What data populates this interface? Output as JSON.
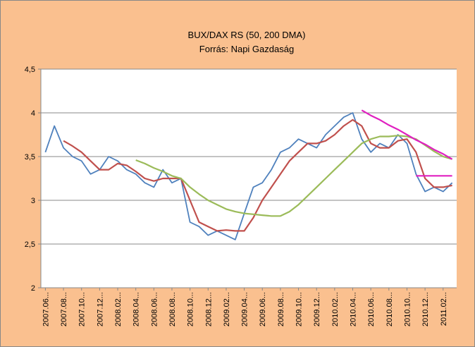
{
  "chart_data": {
    "type": "line",
    "title": "BUX/DAX RS (50, 200 DMA)",
    "subtitle": "Forrás: Napi Gazdaság",
    "categories": [
      "2007.06...",
      null,
      "2007.08...",
      null,
      "2007.10...",
      null,
      "2007.12...",
      null,
      "2008.02...",
      null,
      "2008.04...",
      null,
      "2008.06...",
      null,
      "2008.08...",
      null,
      "2008.10...",
      null,
      "2008.12...",
      null,
      "2009.02...",
      null,
      "2009.04...",
      null,
      "2009.06...",
      null,
      "2009.08...",
      null,
      "2009.10...",
      null,
      "2009.12...",
      null,
      "2010.02...",
      null,
      "2010.04...",
      null,
      "2010.06...",
      null,
      "2010.08...",
      null,
      "2010.10...",
      null,
      "2010.12...",
      null,
      "2011.02...",
      null
    ],
    "series": [
      {
        "color": "#4f81bd",
        "values": [
          3.55,
          3.85,
          3.6,
          3.5,
          3.45,
          3.3,
          3.35,
          3.5,
          3.45,
          3.35,
          3.3,
          3.2,
          3.15,
          3.35,
          3.2,
          3.25,
          2.75,
          2.7,
          2.6,
          2.65,
          2.6,
          2.55,
          2.85,
          3.15,
          3.2,
          3.35,
          3.55,
          3.6,
          3.7,
          3.65,
          3.6,
          3.75,
          3.85,
          3.95,
          4.0,
          3.7,
          3.55,
          3.65,
          3.6,
          3.75,
          3.65,
          3.3,
          3.1,
          3.15,
          3.1,
          3.2
        ]
      },
      {
        "color": "#c0504d",
        "values": [
          null,
          null,
          3.68,
          3.62,
          3.55,
          3.45,
          3.35,
          3.35,
          3.42,
          3.4,
          3.33,
          3.25,
          3.22,
          3.25,
          3.25,
          3.25,
          3.0,
          2.75,
          2.7,
          2.65,
          2.66,
          2.65,
          2.65,
          2.8,
          3.0,
          3.15,
          3.3,
          3.45,
          3.55,
          3.65,
          3.65,
          3.68,
          3.75,
          3.85,
          3.92,
          3.85,
          3.65,
          3.6,
          3.6,
          3.68,
          3.7,
          3.55,
          3.25,
          3.15,
          3.15,
          3.17
        ]
      },
      {
        "color": "#9bbb59",
        "values": [
          null,
          null,
          null,
          null,
          null,
          null,
          null,
          null,
          null,
          null,
          3.46,
          3.42,
          3.37,
          3.33,
          3.28,
          3.25,
          3.15,
          3.07,
          3.0,
          2.95,
          2.9,
          2.87,
          2.85,
          2.84,
          2.83,
          2.82,
          2.82,
          2.87,
          2.95,
          3.05,
          3.15,
          3.25,
          3.35,
          3.45,
          3.55,
          3.65,
          3.7,
          3.73,
          3.73,
          3.74,
          3.73,
          3.7,
          3.63,
          3.56,
          3.5,
          3.47
        ]
      },
      {
        "color": "#e020c0",
        "values": [
          null,
          null,
          null,
          null,
          null,
          null,
          null,
          null,
          null,
          null,
          null,
          null,
          null,
          null,
          null,
          null,
          null,
          null,
          null,
          null,
          null,
          null,
          null,
          null,
          null,
          null,
          null,
          null,
          null,
          null,
          null,
          null,
          null,
          null,
          null,
          4.03,
          3.97,
          3.92,
          3.86,
          3.81,
          3.75,
          3.69,
          3.64,
          3.58,
          3.53,
          3.47
        ]
      },
      {
        "color": "#e020c0",
        "values": [
          null,
          null,
          null,
          null,
          null,
          null,
          null,
          null,
          null,
          null,
          null,
          null,
          null,
          null,
          null,
          null,
          null,
          null,
          null,
          null,
          null,
          null,
          null,
          null,
          null,
          null,
          null,
          null,
          null,
          null,
          null,
          null,
          null,
          null,
          null,
          null,
          null,
          null,
          null,
          null,
          null,
          3.28,
          3.28,
          3.28,
          3.28,
          3.28
        ]
      }
    ],
    "ylim": [
      2,
      4.5
    ],
    "yticks": [
      2,
      {
        "value": 2.5,
        "label": "2,5"
      },
      3,
      {
        "value": 3.5,
        "label": "3,5"
      },
      4,
      {
        "value": 4.5,
        "label": "4,5"
      }
    ],
    "grid": true
  }
}
